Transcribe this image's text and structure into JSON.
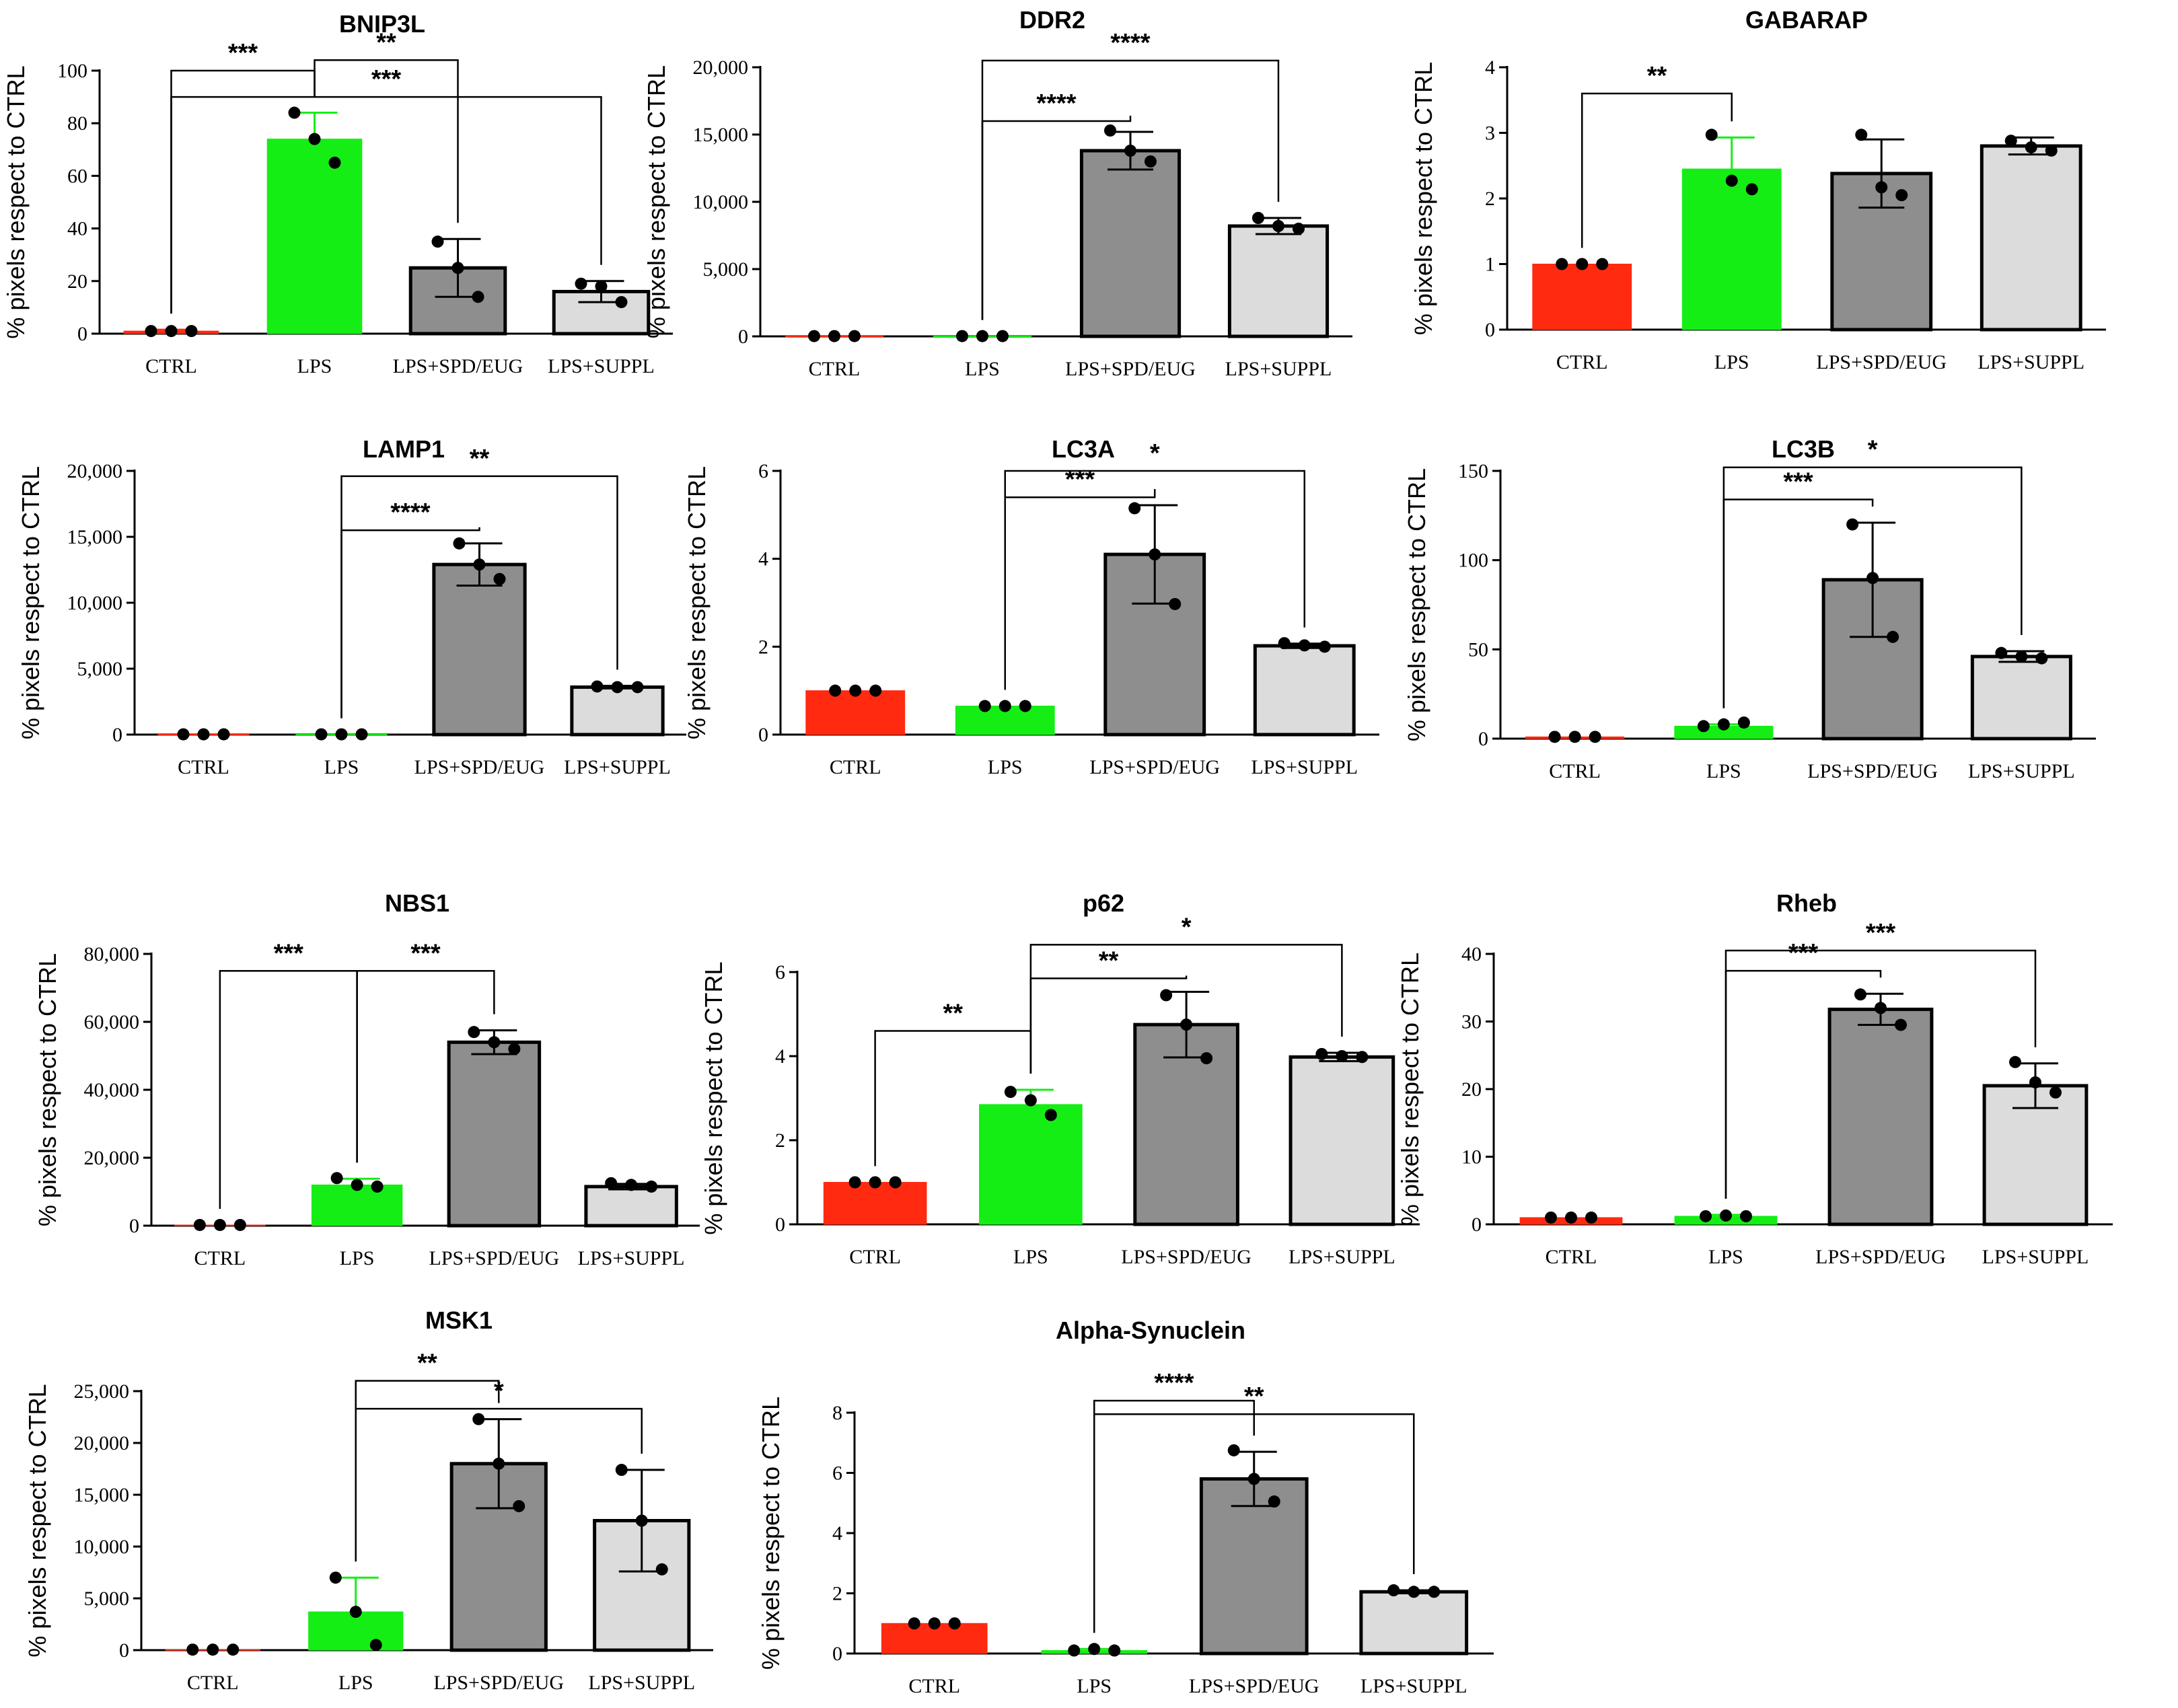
{
  "figure": {
    "colors": {
      "CTRL": "#ff2a10",
      "LPS": "#15ee15",
      "LPS+SPD/EUG": "#8e8e8e",
      "LPS+SUPPL": "#dcdcdc",
      "axis": "#000000"
    }
  },
  "chart_data": [
    {
      "type": "bar",
      "title": "BNIP3L",
      "ylabel": "% pixels respect to CTRL",
      "categories": [
        "CTRL",
        "LPS",
        "LPS+SPD/EUG",
        "LPS+SUPPL"
      ],
      "ylim": [
        0,
        100
      ],
      "yticks": [
        0,
        20,
        40,
        60,
        80,
        100
      ],
      "ytick_labels": [
        "0",
        "20",
        "40",
        "60",
        "80",
        "100"
      ],
      "values": [
        1,
        74,
        25,
        16
      ],
      "errors": [
        0.5,
        10,
        11,
        4
      ],
      "points": [
        [
          1,
          1,
          1
        ],
        [
          84,
          74,
          65
        ],
        [
          35,
          25,
          14
        ],
        [
          19,
          18,
          12
        ]
      ],
      "comparisons": [
        {
          "from": 0,
          "to": 1,
          "label": "***",
          "level": 100
        },
        {
          "from": 1,
          "to": 2,
          "label": "**",
          "level": 104
        },
        {
          "from": 0,
          "to": 3,
          "label": "***",
          "level": 90
        }
      ]
    },
    {
      "type": "bar",
      "title": "DDR2",
      "ylabel": "% pixels respect to CTRL",
      "categories": [
        "CTRL",
        "LPS",
        "LPS+SPD/EUG",
        "LPS+SUPPL"
      ],
      "ylim": [
        0,
        20000
      ],
      "yticks": [
        0,
        5000,
        10000,
        15000,
        20000
      ],
      "ytick_labels": [
        "0",
        "5,000",
        "10,000",
        "15,000",
        "20,000"
      ],
      "values": [
        20,
        20,
        13800,
        8200
      ],
      "errors": [
        0,
        0,
        1400,
        600
      ],
      "points": [
        [
          20,
          20,
          20
        ],
        [
          20,
          20,
          20
        ],
        [
          15300,
          13800,
          13000
        ],
        [
          8800,
          8200,
          8000
        ]
      ],
      "comparisons": [
        {
          "from": 1,
          "to": 3,
          "label": "****",
          "level": 20500
        },
        {
          "from": 1,
          "to": 2,
          "label": "****",
          "level": 16000
        }
      ]
    },
    {
      "type": "bar",
      "title": "GABARAP",
      "ylabel": "% pixels respect to CTRL",
      "categories": [
        "CTRL",
        "LPS",
        "LPS+SPD/EUG",
        "LPS+SUPPL"
      ],
      "ylim": [
        0,
        4
      ],
      "yticks": [
        0,
        1,
        2,
        3,
        4
      ],
      "ytick_labels": [
        "0",
        "1",
        "2",
        "3",
        "4"
      ],
      "values": [
        1,
        2.45,
        2.38,
        2.8
      ],
      "errors": [
        0,
        0.48,
        0.52,
        0.13
      ],
      "points": [
        [
          1,
          1,
          1
        ],
        [
          2.97,
          2.27,
          2.14
        ],
        [
          2.97,
          2.17,
          2.05
        ],
        [
          2.88,
          2.78,
          2.73
        ]
      ],
      "comparisons": [
        {
          "from": 0,
          "to": 1,
          "label": "**",
          "level": 3.6
        }
      ]
    },
    {
      "type": "bar",
      "title": "LAMP1",
      "ylabel": "% pixels respect to CTRL",
      "categories": [
        "CTRL",
        "LPS",
        "LPS+SPD/EUG",
        "LPS+SUPPL"
      ],
      "ylim": [
        0,
        20000
      ],
      "yticks": [
        0,
        5000,
        10000,
        15000,
        20000
      ],
      "ytick_labels": [
        "0",
        "5,000",
        "10,000",
        "15,000",
        "20,000"
      ],
      "values": [
        20,
        20,
        12900,
        3600
      ],
      "errors": [
        0,
        0,
        1600,
        100
      ],
      "points": [
        [
          20,
          20,
          20
        ],
        [
          20,
          20,
          20
        ],
        [
          14500,
          12900,
          11800
        ],
        [
          3650,
          3600,
          3600
        ]
      ],
      "comparisons": [
        {
          "from": 1,
          "to": 3,
          "label": "**",
          "level": 19600
        },
        {
          "from": 1,
          "to": 2,
          "label": "****",
          "level": 15500
        }
      ]
    },
    {
      "type": "bar",
      "title": "LC3A",
      "ylabel": "% pixels respect to CTRL",
      "categories": [
        "CTRL",
        "LPS",
        "LPS+SPD/EUG",
        "LPS+SUPPL"
      ],
      "ylim": [
        0,
        6
      ],
      "yticks": [
        0,
        2,
        4,
        6
      ],
      "ytick_labels": [
        "0",
        "2",
        "4",
        "6"
      ],
      "values": [
        1,
        0.65,
        4.1,
        2.02
      ],
      "errors": [
        0,
        0,
        1.12,
        0.05
      ],
      "points": [
        [
          1,
          1,
          1
        ],
        [
          0.65,
          0.65,
          0.65
        ],
        [
          5.15,
          4.1,
          2.97
        ],
        [
          2.08,
          2.03,
          2.0
        ]
      ],
      "comparisons": [
        {
          "from": 1,
          "to": 3,
          "label": "*",
          "level": 6.0
        },
        {
          "from": 1,
          "to": 2,
          "label": "***",
          "level": 5.4
        }
      ]
    },
    {
      "type": "bar",
      "title": "LC3B",
      "ylabel": "% pixels respect to CTRL",
      "categories": [
        "CTRL",
        "LPS",
        "LPS+SPD/EUG",
        "LPS+SUPPL"
      ],
      "ylim": [
        0,
        150
      ],
      "yticks": [
        0,
        50,
        100,
        150
      ],
      "ytick_labels": [
        "0",
        "50",
        "100",
        "150"
      ],
      "values": [
        1,
        7,
        89,
        46
      ],
      "errors": [
        0,
        1,
        32,
        3
      ],
      "points": [
        [
          1,
          1,
          1
        ],
        [
          7,
          8,
          9
        ],
        [
          120,
          90,
          57
        ],
        [
          48,
          46,
          45
        ]
      ],
      "comparisons": [
        {
          "from": 1,
          "to": 3,
          "label": "*",
          "level": 152
        },
        {
          "from": 1,
          "to": 2,
          "label": "***",
          "level": 134
        }
      ]
    },
    {
      "type": "bar",
      "title": "NBS1",
      "ylabel": "% pixels respect to CTRL",
      "categories": [
        "CTRL",
        "LPS",
        "LPS+SPD/EUG",
        "LPS+SUPPL"
      ],
      "ylim": [
        0,
        80000
      ],
      "yticks": [
        0,
        20000,
        40000,
        60000,
        80000
      ],
      "ytick_labels": [
        "0",
        "20,000",
        "40,000",
        "60,000",
        "80,000"
      ],
      "values": [
        200,
        12000,
        54000,
        11500
      ],
      "errors": [
        0,
        1800,
        3500,
        800
      ],
      "points": [
        [
          200,
          200,
          200
        ],
        [
          14000,
          12000,
          11500
        ],
        [
          57000,
          54000,
          52000
        ],
        [
          12500,
          12000,
          11500
        ]
      ],
      "comparisons": [
        {
          "from": 0,
          "to": 1,
          "label": "***",
          "level": 75000
        },
        {
          "from": 1,
          "to": 2,
          "label": "***",
          "level": 75000
        }
      ]
    },
    {
      "type": "bar",
      "title": "p62",
      "ylabel": "% pixels respect to CTRL",
      "categories": [
        "CTRL",
        "LPS",
        "LPS+SPD/EUG",
        "LPS+SUPPL"
      ],
      "ylim": [
        0,
        6
      ],
      "yticks": [
        0,
        2,
        4,
        6
      ],
      "ytick_labels": [
        "0",
        "2",
        "4",
        "6"
      ],
      "values": [
        1,
        2.85,
        4.75,
        3.98
      ],
      "errors": [
        0,
        0.35,
        0.78,
        0.1
      ],
      "points": [
        [
          1,
          1,
          1
        ],
        [
          3.15,
          2.95,
          2.6
        ],
        [
          5.45,
          4.75,
          3.95
        ],
        [
          4.05,
          4.0,
          3.98
        ]
      ],
      "comparisons": [
        {
          "from": 0,
          "to": 1,
          "label": "**",
          "level": 4.6
        },
        {
          "from": 1,
          "to": 2,
          "label": "**",
          "level": 5.85
        },
        {
          "from": 1,
          "to": 3,
          "label": "*",
          "level": 6.65
        }
      ]
    },
    {
      "type": "bar",
      "title": "Rheb",
      "ylabel": "% pixels respect to CTRL",
      "categories": [
        "CTRL",
        "LPS",
        "LPS+SPD/EUG",
        "LPS+SUPPL"
      ],
      "ylim": [
        0,
        40
      ],
      "yticks": [
        0,
        10,
        20,
        30,
        40
      ],
      "ytick_labels": [
        "0",
        "10",
        "20",
        "30",
        "40"
      ],
      "values": [
        1,
        1.2,
        31.8,
        20.5
      ],
      "errors": [
        0,
        0.2,
        2.3,
        3.3
      ],
      "points": [
        [
          1,
          1,
          1
        ],
        [
          1.2,
          1.3,
          1.2
        ],
        [
          34,
          32,
          29.5
        ],
        [
          24,
          21,
          19.5
        ]
      ],
      "comparisons": [
        {
          "from": 1,
          "to": 3,
          "label": "***",
          "level": 40.5
        },
        {
          "from": 1,
          "to": 2,
          "label": "***",
          "level": 37.5
        }
      ]
    },
    {
      "type": "bar",
      "title": "MSK1",
      "ylabel": "% pixels respect to CTRL",
      "categories": [
        "CTRL",
        "LPS",
        "LPS+SPD/EUG",
        "LPS+SUPPL"
      ],
      "ylim": [
        0,
        25000
      ],
      "yticks": [
        0,
        5000,
        10000,
        15000,
        20000,
        25000
      ],
      "ytick_labels": [
        "0",
        "5,000",
        "10,000",
        "15,000",
        "20,000",
        "25,000"
      ],
      "values": [
        50,
        3700,
        18000,
        12500
      ],
      "errors": [
        0,
        3300,
        4300,
        4900
      ],
      "points": [
        [
          50,
          50,
          50
        ],
        [
          7000,
          3700,
          500
        ],
        [
          22300,
          18000,
          13900
        ],
        [
          17400,
          12500,
          7800
        ]
      ],
      "comparisons": [
        {
          "from": 1,
          "to": 2,
          "label": "**",
          "level": 26000
        },
        {
          "from": 1,
          "to": 3,
          "label": "*",
          "level": 23300
        }
      ]
    },
    {
      "type": "bar",
      "title": "Alpha-Synuclein",
      "ylabel": "% pixels respect to CTRL",
      "categories": [
        "CTRL",
        "LPS",
        "LPS+SPD/EUG",
        "LPS+SUPPL"
      ],
      "ylim": [
        0,
        8
      ],
      "yticks": [
        0,
        2,
        4,
        6,
        8
      ],
      "ytick_labels": [
        "0",
        "2",
        "4",
        "6",
        "8"
      ],
      "values": [
        1,
        0.1,
        5.8,
        2.05
      ],
      "errors": [
        0,
        0.05,
        0.9,
        0.05
      ],
      "points": [
        [
          1,
          1,
          1
        ],
        [
          0.1,
          0.15,
          0.1
        ],
        [
          6.75,
          5.8,
          5.05
        ],
        [
          2.1,
          2.05,
          2.05
        ]
      ],
      "comparisons": [
        {
          "from": 1,
          "to": 2,
          "label": "****",
          "level": 8.4
        },
        {
          "from": 1,
          "to": 3,
          "label": "**",
          "level": 7.95
        }
      ]
    }
  ]
}
